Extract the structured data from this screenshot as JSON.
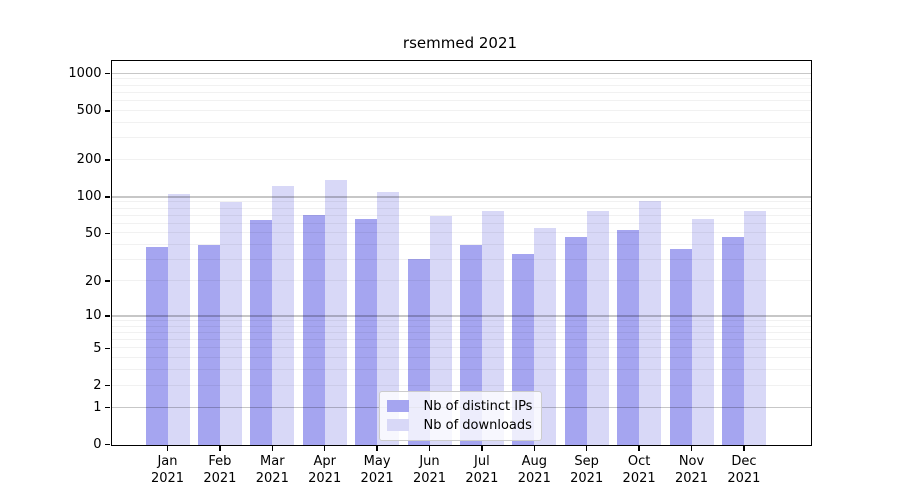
{
  "chart_data": {
    "type": "bar",
    "title": "rsemmed 2021",
    "categories_month": [
      "Jan",
      "Feb",
      "Mar",
      "Apr",
      "May",
      "Jun",
      "Jul",
      "Aug",
      "Sep",
      "Oct",
      "Nov",
      "Dec"
    ],
    "categories_year": "2021",
    "series": [
      {
        "key": "distinct-ips",
        "name": "Nb of distinct IPs",
        "color": "#a5a5f0",
        "values": [
          39,
          40,
          64,
          71,
          66,
          31,
          40,
          34,
          47,
          53,
          37,
          47
        ]
      },
      {
        "key": "downloads",
        "name": "Nb of downloads",
        "color": "#d8d8f7",
        "values": [
          105,
          90,
          122,
          137,
          110,
          70,
          76,
          56,
          76,
          93,
          66,
          76
        ]
      }
    ],
    "y_axis": {
      "scale": "log10(value+1)",
      "ticks": [
        1000,
        500,
        200,
        100,
        50,
        20,
        10,
        5,
        2,
        1,
        0
      ],
      "range_top": 1254
    },
    "gridlines": {
      "major": [
        1,
        10,
        100,
        1000
      ],
      "minor": [
        2,
        3,
        4,
        5,
        6,
        7,
        8,
        9,
        20,
        30,
        40,
        50,
        60,
        70,
        80,
        90,
        200,
        300,
        400,
        500,
        600,
        700,
        800,
        900
      ]
    },
    "legend_position": "lower-center",
    "grid": true
  }
}
